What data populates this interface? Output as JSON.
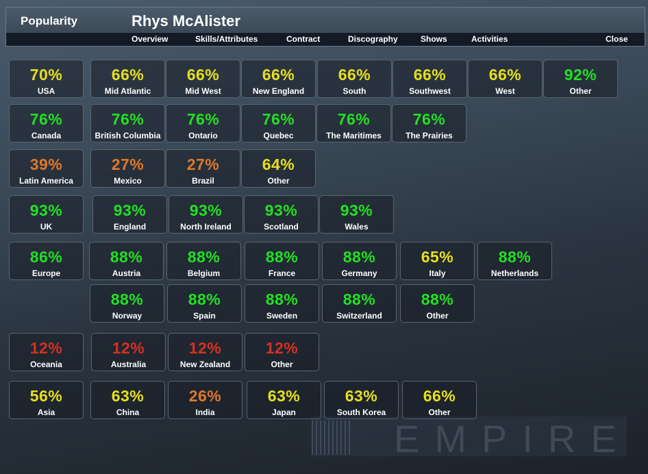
{
  "header": {
    "section": "Popularity",
    "artist": "Rhys McAlister"
  },
  "nav": [
    "Overview",
    "Skills/Attributes",
    "Contract",
    "Discography",
    "Shows",
    "Activities"
  ],
  "close_label": "Close",
  "watermark": "EMPIRE",
  "colors": {
    "yellow": "#e6e01c",
    "green": "#22e022",
    "orange": "#e07828",
    "red": "#d83020"
  },
  "rows": [
    [
      {
        "v": "70%",
        "l": "USA",
        "c": "yellow"
      },
      {
        "v": "66%",
        "l": "Mid Atlantic",
        "c": "yellow"
      },
      {
        "v": "66%",
        "l": "Mid West",
        "c": "yellow"
      },
      {
        "v": "66%",
        "l": "New England",
        "c": "yellow"
      },
      {
        "v": "66%",
        "l": "South",
        "c": "yellow"
      },
      {
        "v": "66%",
        "l": "Southwest",
        "c": "yellow"
      },
      {
        "v": "66%",
        "l": "West",
        "c": "yellow"
      },
      {
        "v": "92%",
        "l": "Other",
        "c": "green"
      }
    ],
    [
      {
        "v": "76%",
        "l": "Canada",
        "c": "green"
      },
      {
        "v": "76%",
        "l": "British Columbia",
        "c": "green"
      },
      {
        "v": "76%",
        "l": "Ontario",
        "c": "green"
      },
      {
        "v": "76%",
        "l": "Quebec",
        "c": "green"
      },
      {
        "v": "76%",
        "l": "The Maritimes",
        "c": "green"
      },
      {
        "v": "76%",
        "l": "The Prairies",
        "c": "green"
      }
    ],
    [
      {
        "v": "39%",
        "l": "Latin America",
        "c": "orange"
      },
      {
        "v": "27%",
        "l": "Mexico",
        "c": "orange"
      },
      {
        "v": "27%",
        "l": "Brazil",
        "c": "orange"
      },
      {
        "v": "64%",
        "l": "Other",
        "c": "yellow"
      }
    ],
    [
      {
        "v": "93%",
        "l": "UK",
        "c": "green"
      },
      {
        "v": "93%",
        "l": "England",
        "c": "green"
      },
      {
        "v": "93%",
        "l": "North Ireland",
        "c": "green"
      },
      {
        "v": "93%",
        "l": "Scotland",
        "c": "green"
      },
      {
        "v": "93%",
        "l": "Wales",
        "c": "green"
      }
    ],
    [
      {
        "v": "86%",
        "l": "Europe",
        "c": "green"
      },
      {
        "v": "88%",
        "l": "Austria",
        "c": "green"
      },
      {
        "v": "88%",
        "l": "Belgium",
        "c": "green"
      },
      {
        "v": "88%",
        "l": "France",
        "c": "green"
      },
      {
        "v": "88%",
        "l": "Germany",
        "c": "green"
      },
      {
        "v": "65%",
        "l": "Italy",
        "c": "yellow"
      },
      {
        "v": "88%",
        "l": "Netherlands",
        "c": "green"
      }
    ],
    [
      {
        "v": "88%",
        "l": "Norway",
        "c": "green"
      },
      {
        "v": "88%",
        "l": "Spain",
        "c": "green"
      },
      {
        "v": "88%",
        "l": "Sweden",
        "c": "green"
      },
      {
        "v": "88%",
        "l": "Switzerland",
        "c": "green"
      },
      {
        "v": "88%",
        "l": "Other",
        "c": "green"
      }
    ],
    [
      {
        "v": "12%",
        "l": "Oceania",
        "c": "red"
      },
      {
        "v": "12%",
        "l": "Australia",
        "c": "red"
      },
      {
        "v": "12%",
        "l": "New Zealand",
        "c": "red"
      },
      {
        "v": "12%",
        "l": "Other",
        "c": "red"
      }
    ],
    [
      {
        "v": "56%",
        "l": "Asia",
        "c": "yellow"
      },
      {
        "v": "63%",
        "l": "China",
        "c": "yellow"
      },
      {
        "v": "26%",
        "l": "India",
        "c": "orange"
      },
      {
        "v": "63%",
        "l": "Japan",
        "c": "yellow"
      },
      {
        "v": "63%",
        "l": "South Korea",
        "c": "yellow"
      },
      {
        "v": "66%",
        "l": "Other",
        "c": "yellow"
      }
    ]
  ]
}
